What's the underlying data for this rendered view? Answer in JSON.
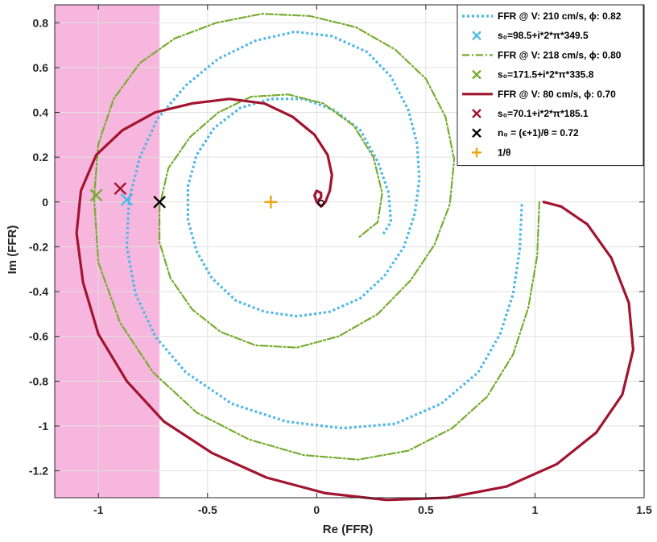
{
  "chart_data": {
    "type": "line",
    "title": "",
    "xlabel": "Re (FFR)",
    "ylabel": "Im (FFR)",
    "xlim": [
      -1.2,
      1.5
    ],
    "ylim": [
      -1.32,
      0.88
    ],
    "xticks": [
      -1,
      -0.5,
      0,
      0.5,
      1,
      1.5
    ],
    "xtick_labels": [
      "-1",
      "-0.5",
      "0",
      "0.5",
      "1",
      "1.5"
    ],
    "yticks": [
      0.8,
      0.6,
      0.4,
      0.2,
      0,
      -0.2,
      -0.4,
      -0.6,
      -0.8,
      -1,
      -1.2
    ],
    "ytick_labels": [
      "0.8",
      "0.6",
      "0.4",
      "0.2",
      "0",
      "-0.2",
      "-0.4",
      "-0.6",
      "-0.8",
      "-1",
      "-1.2"
    ],
    "grid": true,
    "legend_position": "top-right",
    "shaded_region": {
      "x": [
        -1.2,
        -0.72
      ],
      "color": "#f7b6dd"
    },
    "series": [
      {
        "name": "FFR @ V: 210 cm/s, φ: 0.82",
        "style": "dotted",
        "color": "#4db8e8",
        "x": [
          0.94,
          0.93,
          0.9,
          0.84,
          0.74,
          0.57,
          0.36,
          0.12,
          -0.14,
          -0.39,
          -0.6,
          -0.74,
          -0.83,
          -0.87,
          -0.86,
          -0.81,
          -0.73,
          -0.6,
          -0.45,
          -0.28,
          -0.1,
          0.07,
          0.23,
          0.34,
          0.42,
          0.46,
          0.47,
          0.45,
          0.4,
          0.31,
          0.2,
          0.06,
          -0.09,
          -0.24,
          -0.37,
          -0.48,
          -0.55,
          -0.59,
          -0.59,
          -0.55,
          -0.47,
          -0.35,
          -0.21,
          -0.06,
          0.08,
          0.2,
          0.28,
          0.33,
          0.34,
          0.3
        ],
        "y": [
          -0.01,
          -0.21,
          -0.41,
          -0.59,
          -0.76,
          -0.9,
          -0.99,
          -1.01,
          -0.98,
          -0.9,
          -0.76,
          -0.6,
          -0.41,
          -0.2,
          0.01,
          0.2,
          0.37,
          0.52,
          0.64,
          0.72,
          0.76,
          0.74,
          0.67,
          0.56,
          0.41,
          0.26,
          0.1,
          -0.05,
          -0.2,
          -0.33,
          -0.43,
          -0.49,
          -0.51,
          -0.49,
          -0.44,
          -0.34,
          -0.22,
          -0.08,
          0.07,
          0.21,
          0.33,
          0.42,
          0.46,
          0.46,
          0.41,
          0.32,
          0.18,
          0.04,
          -0.09,
          -0.15
        ]
      },
      {
        "name": "FFR @ V: 218 cm/s, φ: 0.80",
        "style": "dashdot",
        "color": "#77ac30",
        "x": [
          1.02,
          1.01,
          0.97,
          0.9,
          0.78,
          0.62,
          0.42,
          0.19,
          -0.06,
          -0.31,
          -0.55,
          -0.75,
          -0.9,
          -1.0,
          -1.02,
          -1.0,
          -0.93,
          -0.81,
          -0.65,
          -0.46,
          -0.25,
          -0.03,
          0.18,
          0.36,
          0.5,
          0.59,
          0.63,
          0.61,
          0.54,
          0.43,
          0.28,
          0.1,
          -0.09,
          -0.28,
          -0.44,
          -0.57,
          -0.67,
          -0.72,
          -0.72,
          -0.68,
          -0.58,
          -0.45,
          -0.3,
          -0.13,
          0.03,
          0.17,
          0.26,
          0.3,
          0.28,
          0.19
        ],
        "y": [
          0.0,
          -0.24,
          -0.47,
          -0.68,
          -0.87,
          -1.01,
          -1.11,
          -1.15,
          -1.13,
          -1.06,
          -0.94,
          -0.76,
          -0.54,
          -0.27,
          0.02,
          0.26,
          0.46,
          0.62,
          0.73,
          0.8,
          0.84,
          0.83,
          0.78,
          0.68,
          0.55,
          0.38,
          0.19,
          -0.01,
          -0.19,
          -0.35,
          -0.5,
          -0.6,
          -0.65,
          -0.64,
          -0.58,
          -0.48,
          -0.34,
          -0.18,
          -0.02,
          0.15,
          0.29,
          0.4,
          0.47,
          0.48,
          0.44,
          0.34,
          0.2,
          0.04,
          -0.09,
          -0.16
        ]
      },
      {
        "name": "FFR @ V: 80 cm/s, φ: 0.70",
        "style": "solid",
        "color": "#a2142f",
        "x": [
          1.04,
          1.12,
          1.24,
          1.35,
          1.43,
          1.45,
          1.4,
          1.28,
          1.1,
          0.87,
          0.6,
          0.32,
          0.04,
          -0.23,
          -0.48,
          -0.7,
          -0.87,
          -1.0,
          -1.07,
          -1.1,
          -1.08,
          -1.01,
          -0.89,
          -0.74,
          -0.57,
          -0.4,
          -0.24,
          -0.11,
          -0.01,
          0.05,
          0.07,
          0.06,
          0.04,
          0.02,
          0.0,
          -0.01,
          0.0,
          0.02,
          0.02,
          0.01
        ],
        "y": [
          0.0,
          -0.02,
          -0.1,
          -0.25,
          -0.45,
          -0.66,
          -0.86,
          -1.03,
          -1.17,
          -1.27,
          -1.32,
          -1.33,
          -1.3,
          -1.23,
          -1.12,
          -0.98,
          -0.8,
          -0.59,
          -0.36,
          -0.14,
          0.05,
          0.21,
          0.32,
          0.4,
          0.44,
          0.46,
          0.44,
          0.38,
          0.3,
          0.21,
          0.12,
          0.05,
          0.0,
          -0.02,
          0.0,
          0.03,
          0.05,
          0.04,
          0.02,
          0.01
        ]
      }
    ],
    "markers": [
      {
        "name": "s0 (210 cm/s)",
        "symbol": "x",
        "color": "#4db8e8",
        "x": -0.87,
        "y": 0.01
      },
      {
        "name": "s0 (218 cm/s)",
        "symbol": "x",
        "color": "#77ac30",
        "x": -1.01,
        "y": 0.03
      },
      {
        "name": "s0 (80 cm/s)",
        "symbol": "x",
        "color": "#a2142f",
        "x": -0.9,
        "y": 0.06
      },
      {
        "name": "n0",
        "symbol": "x",
        "color": "#000000",
        "x": -0.72,
        "y": 0.0
      },
      {
        "name": "1/θ",
        "symbol": "+",
        "color": "#f0a30a",
        "x": -0.21,
        "y": 0.0
      },
      {
        "name": "origin",
        "symbol": "o",
        "color": "#000000",
        "x": 0.02,
        "y": -0.005
      }
    ],
    "legend": [
      {
        "label": "FFR @ V: 210 cm/s, ϕ: 0.82",
        "kind": "line",
        "style": "dotted",
        "color": "#4db8e8"
      },
      {
        "label": "s₀=98.5+i*2*π*349.5",
        "kind": "x",
        "color": "#4db8e8"
      },
      {
        "label": "FFR @ V: 218 cm/s, ϕ: 0.80",
        "kind": "line",
        "style": "dashdot",
        "color": "#77ac30"
      },
      {
        "label": "s₀=171.5+i*2*π*335.8",
        "kind": "x",
        "color": "#77ac30"
      },
      {
        "label": "FFR @ V: 80 cm/s, ϕ: 0.70",
        "kind": "line",
        "style": "solid",
        "color": "#a2142f"
      },
      {
        "label": "s₀=70.1+i*2*π*185.1",
        "kind": "x",
        "color": "#a2142f"
      },
      {
        "label": "n₀ = (ϵ+1)/θ = 0.72",
        "kind": "x",
        "color": "#000000"
      },
      {
        "label": "1/θ",
        "kind": "+",
        "color": "#f0a30a"
      }
    ]
  }
}
